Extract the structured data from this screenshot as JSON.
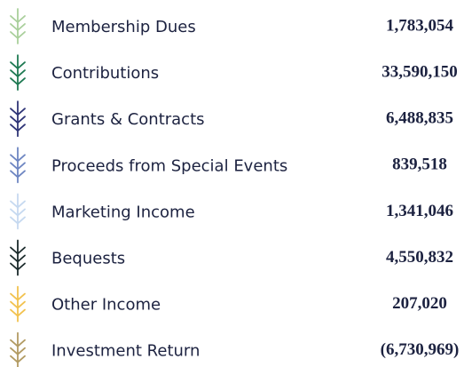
{
  "rows": [
    {
      "label": "Membership Dues",
      "value": "1,783,054",
      "color": "#a9cf9b"
    },
    {
      "label": "Contributions",
      "value": "33,590,150",
      "color": "#1f7a53"
    },
    {
      "label": "Grants & Contracts",
      "value": "6,488,835",
      "color": "#2f3577"
    },
    {
      "label": "Proceeds from Special Events",
      "value": "839,518",
      "color": "#6e86c2"
    },
    {
      "label": "Marketing Income",
      "value": "1,341,046",
      "color": "#c6d9f0"
    },
    {
      "label": "Bequests",
      "value": "4,550,832",
      "color": "#1b2a2b"
    },
    {
      "label": "Other Income",
      "value": "207,020",
      "color": "#f2c24f"
    },
    {
      "label": "Investment Return",
      "value": "(6,730,969)",
      "color": "#b29b63"
    }
  ]
}
